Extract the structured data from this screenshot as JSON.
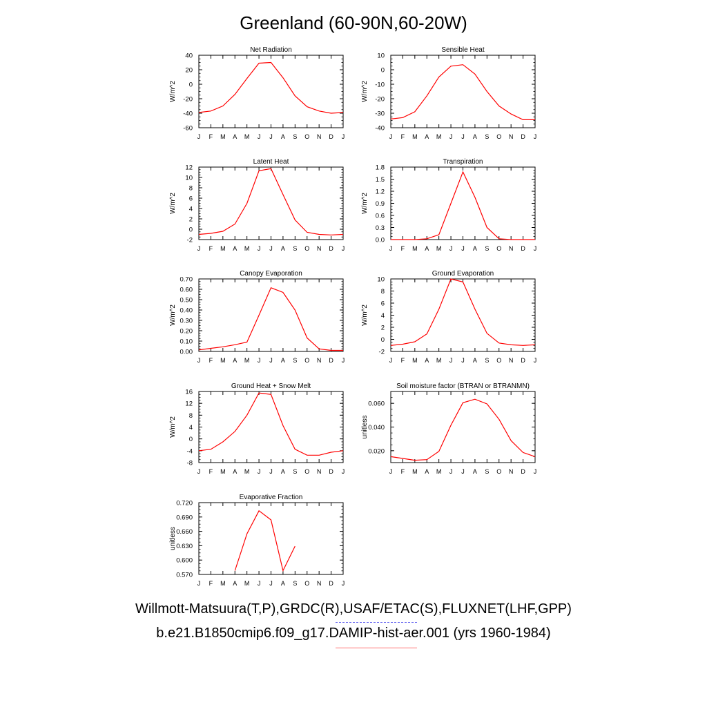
{
  "title": "Greenland (60-90N,60-20W)",
  "legend": {
    "observations": "Willmott-Matsuura(T,P),GRDC(R),USAF/ETAC(S),FLUXNET(LHF,GPP)",
    "model": "b.e21.B1850cmip6.f09_g17.DAMIP-hist-aer.001 (yrs 1960-1984)",
    "model_color": "#ff0000",
    "observations_color": "#6d6df0"
  },
  "chart_data": [
    {
      "type": "line",
      "title": "Net Radiation",
      "ylabel": "W/m^2",
      "categories": [
        "J",
        "F",
        "M",
        "A",
        "M",
        "J",
        "J",
        "A",
        "S",
        "O",
        "N",
        "D",
        "J"
      ],
      "ylim": [
        -60,
        40
      ],
      "yticks": [
        "40",
        "20",
        "0",
        "-20",
        "-40",
        "-60"
      ],
      "ytick_values": [
        40,
        20,
        0,
        -20,
        -40,
        -60
      ],
      "series": [
        {
          "values": [
            -39,
            -37,
            -30,
            -14,
            8,
            29,
            30,
            9,
            -16,
            -31,
            -37,
            -40,
            -39
          ]
        }
      ]
    },
    {
      "type": "line",
      "title": "Sensible Heat",
      "ylabel": "W/m^2",
      "categories": [
        "J",
        "F",
        "M",
        "A",
        "M",
        "J",
        "J",
        "A",
        "S",
        "O",
        "N",
        "D",
        "J"
      ],
      "ylim": [
        -40,
        10
      ],
      "yticks": [
        "10",
        "0",
        "-10",
        "-20",
        "-30",
        "-40"
      ],
      "ytick_values": [
        10,
        0,
        -10,
        -20,
        -30,
        -40
      ],
      "series": [
        {
          "values": [
            -34,
            -33,
            -29,
            -18,
            -5,
            2.5,
            3.5,
            -3,
            -15,
            -25,
            -30.5,
            -34.5,
            -34.5
          ]
        }
      ]
    },
    {
      "type": "line",
      "title": "Latent Heat",
      "ylabel": "W/m^2",
      "categories": [
        "J",
        "F",
        "M",
        "A",
        "M",
        "J",
        "J",
        "A",
        "S",
        "O",
        "N",
        "D",
        "J"
      ],
      "ylim": [
        -2,
        12
      ],
      "yticks": [
        "12",
        "10",
        "8",
        "6",
        "4",
        "2",
        "0",
        "-2"
      ],
      "ytick_values": [
        12,
        10,
        8,
        6,
        4,
        2,
        0,
        -2
      ],
      "series": [
        {
          "values": [
            -1.0,
            -0.8,
            -0.4,
            1.0,
            5.0,
            11.3,
            11.7,
            6.7,
            1.8,
            -0.6,
            -1.0,
            -1.1,
            -1.0
          ]
        }
      ]
    },
    {
      "type": "line",
      "title": "Transpiration",
      "ylabel": "W/m^2",
      "categories": [
        "J",
        "F",
        "M",
        "A",
        "M",
        "J",
        "J",
        "A",
        "S",
        "O",
        "N",
        "D",
        "J"
      ],
      "ylim": [
        0,
        1.8
      ],
      "yticks": [
        "1.8",
        "1.5",
        "1.2",
        "0.9",
        "0.6",
        "0.3",
        "0.0"
      ],
      "ytick_values": [
        1.8,
        1.5,
        1.2,
        0.9,
        0.6,
        0.3,
        0.0
      ],
      "series": [
        {
          "values": [
            0.0,
            0.0,
            0.0,
            0.02,
            0.12,
            0.9,
            1.68,
            1.05,
            0.3,
            0.02,
            0.0,
            0.0,
            0.0
          ]
        }
      ]
    },
    {
      "type": "line",
      "title": "Canopy Evaporation",
      "ylabel": "W/m^2",
      "categories": [
        "J",
        "F",
        "M",
        "A",
        "M",
        "J",
        "J",
        "A",
        "S",
        "O",
        "N",
        "D",
        "J"
      ],
      "ylim": [
        0,
        0.7
      ],
      "yticks": [
        "0.70",
        "0.60",
        "0.50",
        "0.40",
        "0.30",
        "0.20",
        "0.10",
        "0.00"
      ],
      "ytick_values": [
        0.7,
        0.6,
        0.5,
        0.4,
        0.3,
        0.2,
        0.1,
        0.0
      ],
      "series": [
        {
          "values": [
            0.015,
            0.03,
            0.045,
            0.065,
            0.09,
            0.35,
            0.615,
            0.57,
            0.4,
            0.13,
            0.025,
            0.01,
            0.01
          ]
        }
      ]
    },
    {
      "type": "line",
      "title": "Ground Evaporation",
      "ylabel": "W/m^2",
      "categories": [
        "J",
        "F",
        "M",
        "A",
        "M",
        "J",
        "J",
        "A",
        "S",
        "O",
        "N",
        "D",
        "J"
      ],
      "ylim": [
        -2,
        10
      ],
      "yticks": [
        "10",
        "8",
        "6",
        "4",
        "2",
        "0",
        "-2"
      ],
      "ytick_values": [
        10,
        8,
        6,
        4,
        2,
        0,
        -2
      ],
      "series": [
        {
          "values": [
            -1.0,
            -0.8,
            -0.4,
            0.9,
            5.0,
            10.0,
            9.5,
            5.0,
            1.0,
            -0.6,
            -0.9,
            -1.0,
            -0.9
          ]
        }
      ]
    },
    {
      "type": "line",
      "title": "Ground Heat + Snow Melt",
      "ylabel": "W/m^2",
      "categories": [
        "J",
        "F",
        "M",
        "A",
        "M",
        "J",
        "J",
        "A",
        "S",
        "O",
        "N",
        "D",
        "J"
      ],
      "ylim": [
        -8,
        16
      ],
      "yticks": [
        "16",
        "12",
        "8",
        "4",
        "0",
        "-4",
        "-8"
      ],
      "ytick_values": [
        16,
        12,
        8,
        4,
        0,
        -4,
        -8
      ],
      "series": [
        {
          "values": [
            -4.0,
            -3.5,
            -1.0,
            2.5,
            8.0,
            15.5,
            15.0,
            4.5,
            -3.5,
            -5.5,
            -5.5,
            -4.5,
            -4.0
          ]
        }
      ]
    },
    {
      "type": "line",
      "title": "Soil moisture factor (BTRAN or BTRANMN)",
      "ylabel": "unitless",
      "categories": [
        "J",
        "F",
        "M",
        "A",
        "M",
        "J",
        "J",
        "A",
        "S",
        "O",
        "N",
        "D",
        "J"
      ],
      "ylim": [
        0.01,
        0.07
      ],
      "yticks": [
        "0.060",
        "0.040",
        "0.020"
      ],
      "ytick_values": [
        0.06,
        0.04,
        0.02
      ],
      "series": [
        {
          "values": [
            0.015,
            0.0135,
            0.012,
            0.0125,
            0.0195,
            0.0415,
            0.0605,
            0.0635,
            0.0595,
            0.0465,
            0.0285,
            0.0185,
            0.015
          ]
        }
      ]
    },
    {
      "type": "line",
      "title": "Evaporative Fraction",
      "ylabel": "unitless",
      "categories": [
        "J",
        "F",
        "M",
        "A",
        "M",
        "J",
        "J",
        "A",
        "S",
        "O",
        "N",
        "D",
        "J"
      ],
      "ylim": [
        0.57,
        0.72
      ],
      "yticks": [
        "0.720",
        "0.690",
        "0.660",
        "0.630",
        "0.600",
        "0.570"
      ],
      "ytick_values": [
        0.72,
        0.69,
        0.66,
        0.63,
        0.6,
        0.57
      ],
      "series": [
        {
          "values": [
            null,
            null,
            null,
            0.578,
            0.655,
            0.703,
            0.684,
            0.578,
            0.629,
            null,
            null,
            null,
            null
          ]
        }
      ]
    }
  ]
}
